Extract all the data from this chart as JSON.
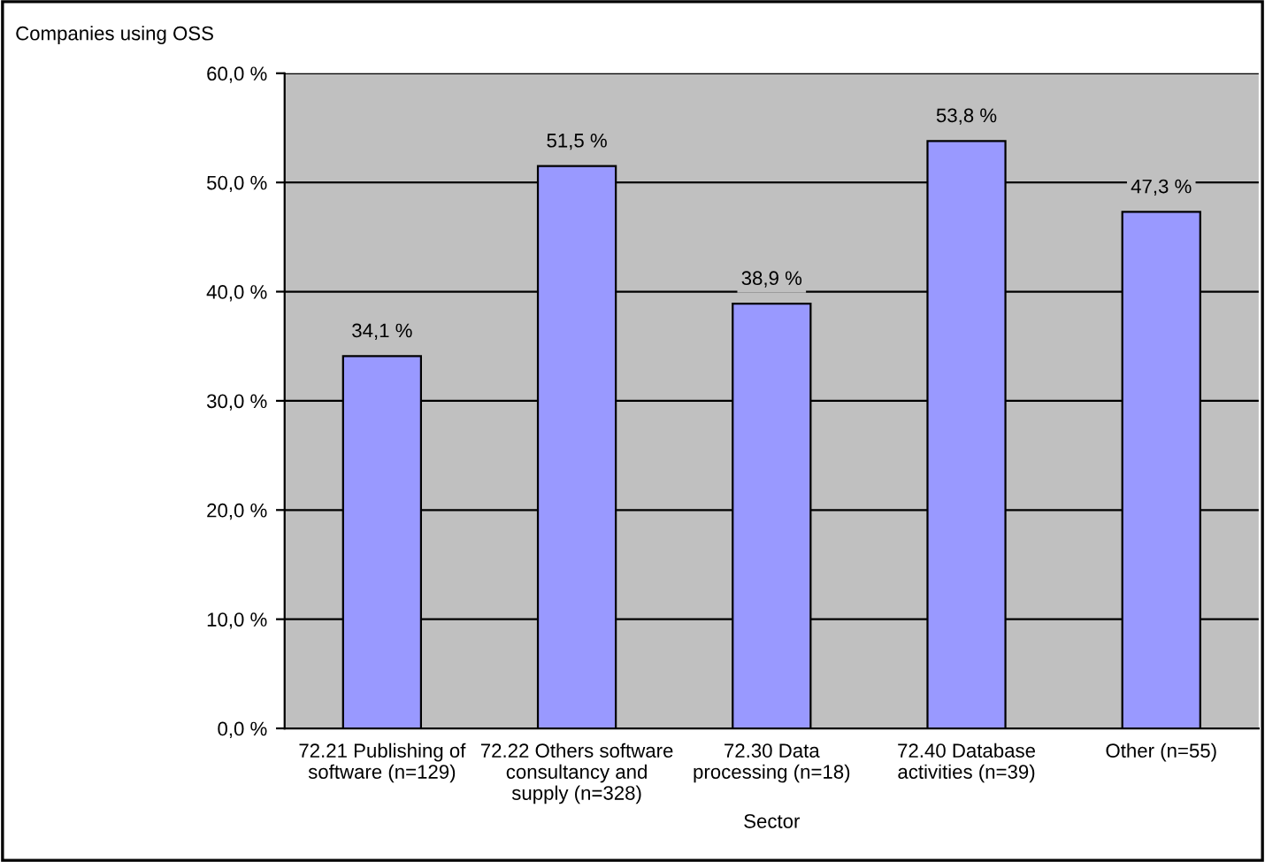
{
  "chart_data": {
    "type": "bar",
    "title": "Companies using OSS",
    "xlabel": "Sector",
    "categories": [
      "72.21 Publishing of\nsoftware (n=129)",
      "72.22 Others software\nconsultancy and\nsupply (n=328)",
      "72.30 Data\nprocessing (n=18)",
      "72.40 Database\nactivities (n=39)",
      "Other (n=55)"
    ],
    "values": [
      34.1,
      51.5,
      38.9,
      53.8,
      47.3
    ],
    "value_labels": [
      "34,1 %",
      "51,5 %",
      "38,9 %",
      "53,8 %",
      "47,3 %"
    ],
    "color": "#9999ff",
    "ylim": [
      0,
      60
    ],
    "yticks": [
      {
        "value": 0,
        "label": "0,0 %"
      },
      {
        "value": 10,
        "label": "10,0 %"
      },
      {
        "value": 20,
        "label": "20,0 %"
      },
      {
        "value": 30,
        "label": "30,0 %"
      },
      {
        "value": 40,
        "label": "40,0 %"
      },
      {
        "value": 50,
        "label": "50,0 %"
      },
      {
        "value": 60,
        "label": "60,0 %"
      }
    ],
    "grid": "y",
    "legend": false
  }
}
